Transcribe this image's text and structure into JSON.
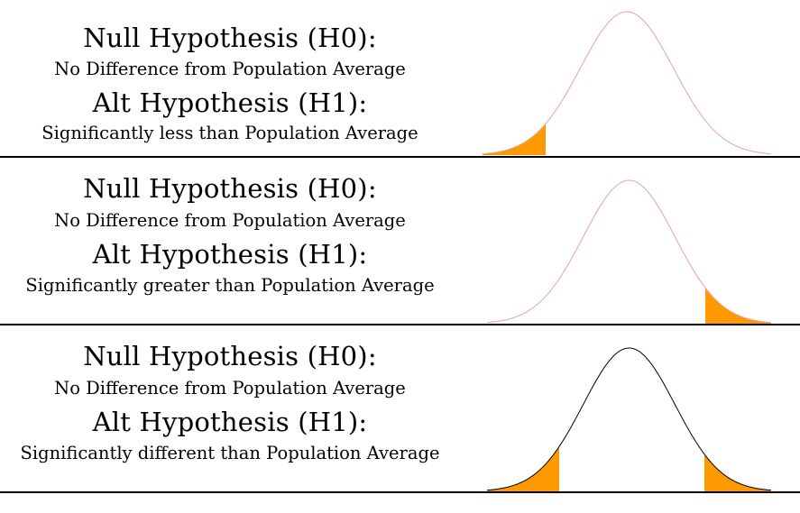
{
  "panels": [
    {
      "null_title": "Null Hypothesis (H0):",
      "null_desc": "No Difference from Population Average",
      "alt_title": "Alt Hypothesis (H1):",
      "alt_desc": "Significantly less than Population Average",
      "tail": "left",
      "curve_color": "#e8a39b"
    },
    {
      "null_title": "Null Hypothesis (H0):",
      "null_desc": "No Difference from Population Average",
      "alt_title": "Alt Hypothesis (H1):",
      "alt_desc": "Significantly greater than Population Average",
      "tail": "right",
      "curve_color": "#e8a39b"
    },
    {
      "null_title": "Null Hypothesis (H0):",
      "null_desc": "No Difference from Population Average",
      "alt_title": "Alt Hypothesis (H1):",
      "alt_desc": "Significantly different than Population Average",
      "tail": "both",
      "curve_color": "#000000"
    }
  ],
  "colors": {
    "shade": "#ff9900",
    "divider": "#000000"
  }
}
